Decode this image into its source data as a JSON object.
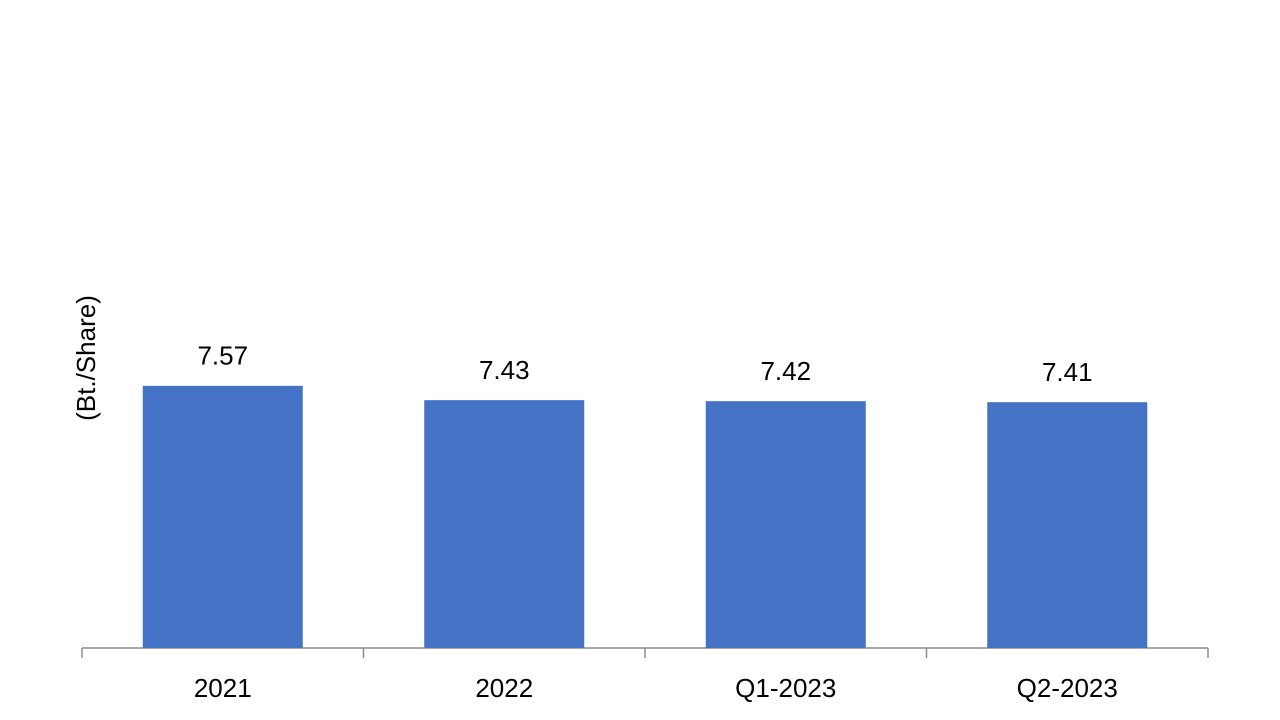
{
  "chart_data": {
    "type": "bar",
    "y_label": "(Bt./Share)",
    "categories": [
      "2021",
      "2022",
      "Q1-2023",
      "Q2-2023"
    ],
    "values": [
      7.57,
      7.43,
      7.42,
      7.41
    ],
    "color": "#4472c4",
    "ylim": [
      5,
      10
    ]
  }
}
